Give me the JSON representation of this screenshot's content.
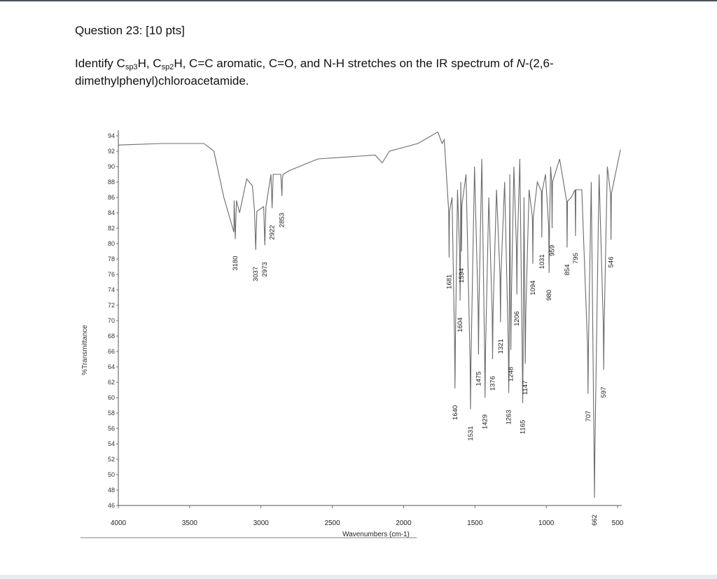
{
  "question": {
    "title": "Question 23: [10 pts]",
    "text_pre": "Identify C",
    "sub1": "sp3",
    "text_mid1": "H, C",
    "sub2": "sp2",
    "text_mid2": "H, C=C aromatic, C=O, and N-H stretches on the IR spectrum of ",
    "compound_italic": "N",
    "compound_rest": "-(2,6-dimethylphenyl)chloroacetamide."
  },
  "chart_data": {
    "type": "line",
    "xlabel": "Wavenumbers (cm-1)",
    "ylabel": "%Transmittance",
    "xlim": [
      4000,
      450
    ],
    "ylim": [
      46,
      94
    ],
    "x_ticks": [
      4000,
      3500,
      3000,
      2500,
      2000,
      1500,
      1000,
      500
    ],
    "y_ticks": [
      94,
      92,
      90,
      88,
      86,
      84,
      82,
      80,
      78,
      76,
      74,
      72,
      70,
      68,
      66,
      64,
      62,
      60,
      58,
      56,
      54,
      52,
      50,
      48,
      46
    ],
    "grid": false,
    "baseline_points": [
      [
        4000,
        92.8
      ],
      [
        3700,
        93.0
      ],
      [
        3400,
        93.0
      ],
      [
        3330,
        92.0
      ],
      [
        3260,
        86
      ],
      [
        3190,
        81.5
      ],
      [
        3150,
        84
      ],
      [
        3100,
        88.4
      ],
      [
        3060,
        87.5
      ],
      [
        2850,
        88.4
      ],
      [
        2800,
        89.5
      ],
      [
        2600,
        91.0
      ],
      [
        2200,
        91.5
      ],
      [
        2150,
        90.5
      ],
      [
        2100,
        92.0
      ],
      [
        1900,
        93.0
      ],
      [
        1760,
        94.5
      ],
      [
        1730,
        93.0
      ]
    ],
    "peaks": [
      {
        "wavenumber": 3180,
        "transmittance": 80.6,
        "label": "3180"
      },
      {
        "wavenumber": 3037,
        "transmittance": 79.2,
        "label": "3037"
      },
      {
        "wavenumber": 2973,
        "transmittance": 79.8,
        "label": "2973"
      },
      {
        "wavenumber": 2922,
        "transmittance": 84.6,
        "label": "2922"
      },
      {
        "wavenumber": 2853,
        "transmittance": 86.2,
        "label": "2853"
      },
      {
        "wavenumber": 1681,
        "transmittance": 78.2,
        "label": "1681"
      },
      {
        "wavenumber": 1640,
        "transmittance": 61.2,
        "label": "1640"
      },
      {
        "wavenumber": 1604,
        "transmittance": 72.6,
        "label": "1604"
      },
      {
        "wavenumber": 1594,
        "transmittance": 79.0,
        "label": "1594"
      },
      {
        "wavenumber": 1531,
        "transmittance": 58.5,
        "label": "1531"
      },
      {
        "wavenumber": 1475,
        "transmittance": 65.6,
        "label": "1475"
      },
      {
        "wavenumber": 1429,
        "transmittance": 60.0,
        "label": "1429"
      },
      {
        "wavenumber": 1376,
        "transmittance": 65.0,
        "label": "1376"
      },
      {
        "wavenumber": 1321,
        "transmittance": 69.8,
        "label": "1321"
      },
      {
        "wavenumber": 1263,
        "transmittance": 60.6,
        "label": "1263"
      },
      {
        "wavenumber": 1248,
        "transmittance": 66.2,
        "label": "1248"
      },
      {
        "wavenumber": 1206,
        "transmittance": 73.4,
        "label": "1206"
      },
      {
        "wavenumber": 1165,
        "transmittance": 59.3,
        "label": "1165"
      },
      {
        "wavenumber": 1147,
        "transmittance": 64.4,
        "label": "1147"
      },
      {
        "wavenumber": 1094,
        "transmittance": 77.4,
        "label": "1094"
      },
      {
        "wavenumber": 1031,
        "transmittance": 80.8,
        "label": "1031"
      },
      {
        "wavenumber": 980,
        "transmittance": 76.2,
        "label": "980"
      },
      {
        "wavenumber": 959,
        "transmittance": 82.0,
        "label": "959"
      },
      {
        "wavenumber": 854,
        "transmittance": 79.5,
        "label": "854"
      },
      {
        "wavenumber": 795,
        "transmittance": 81.0,
        "label": "795"
      },
      {
        "wavenumber": 707,
        "transmittance": 60.5,
        "label": "707"
      },
      {
        "wavenumber": 662,
        "transmittance": 47.0,
        "label": "662"
      },
      {
        "wavenumber": 597,
        "transmittance": 63.6,
        "label": "597"
      },
      {
        "wavenumber": 546,
        "transmittance": 80.5,
        "label": "546"
      }
    ],
    "series_end": [
      [
        480,
        92.2
      ]
    ]
  }
}
